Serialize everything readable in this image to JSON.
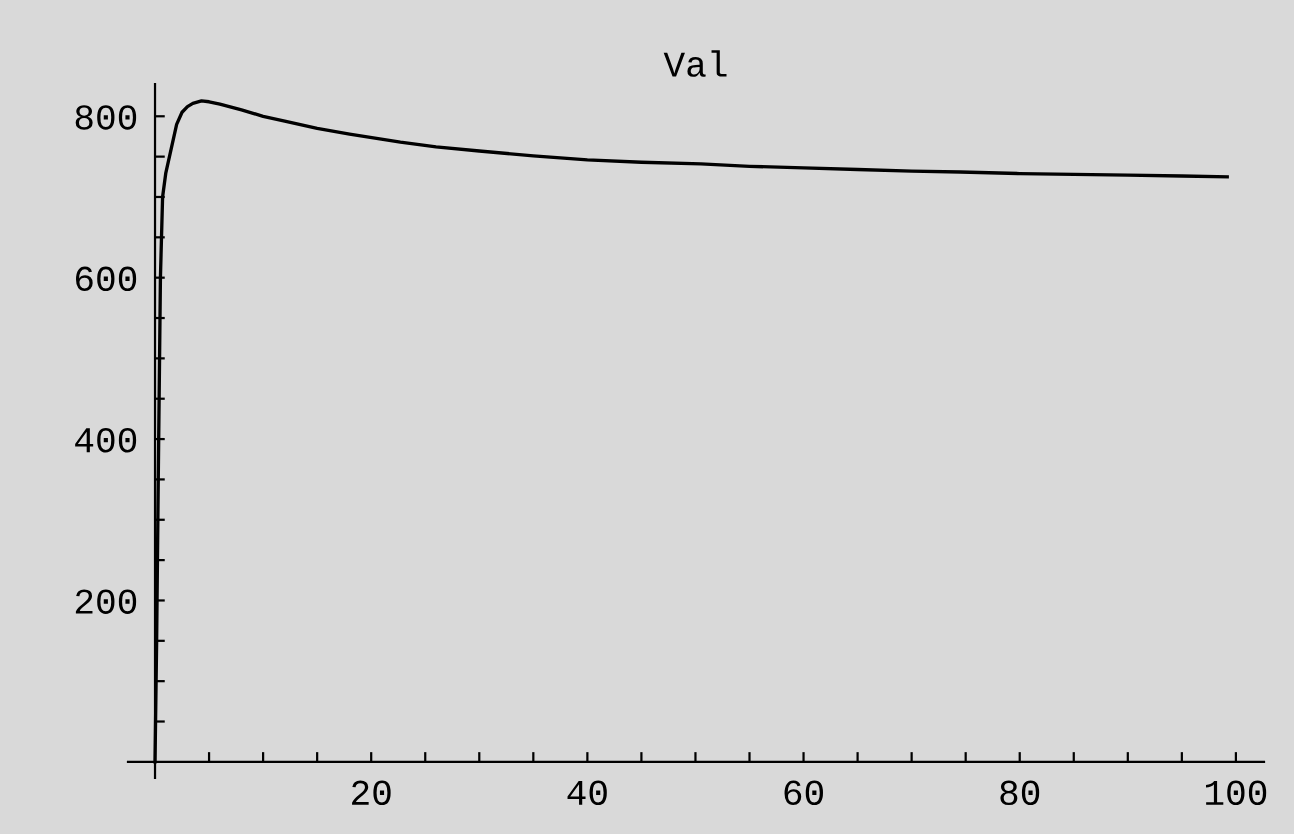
{
  "chart_data": {
    "type": "line",
    "title": "Val",
    "x": [
      0,
      0.15,
      0.3,
      0.5,
      0.7,
      1,
      1.5,
      2,
      2.5,
      3,
      3.5,
      4.3,
      5,
      6,
      8,
      10,
      12,
      15,
      18,
      22.7,
      26,
      30,
      35,
      40,
      45,
      50.5,
      55,
      60,
      65,
      70,
      74.5,
      80,
      85,
      90,
      95,
      99.2
    ],
    "series": [
      {
        "color": "#000000",
        "values": [
          0,
          150,
          350,
          600,
          700,
          730,
          760,
          790,
          805,
          812,
          816,
          819,
          818,
          815,
          808,
          800,
          794,
          785,
          778,
          768,
          762,
          757,
          751,
          746,
          743,
          741,
          738,
          736,
          734,
          732,
          731,
          729,
          728,
          727,
          726,
          725
        ]
      }
    ],
    "xlim": [
      -2.5,
      102.6
    ],
    "ylim": [
      -20,
      840
    ],
    "xticks": [
      {
        "value": 5,
        "label": null
      },
      {
        "value": 10,
        "label": null
      },
      {
        "value": 15,
        "label": null
      },
      20,
      {
        "value": 25,
        "label": null
      },
      {
        "value": 30,
        "label": null
      },
      {
        "value": 35,
        "label": null
      },
      40,
      {
        "value": 45,
        "label": null
      },
      {
        "value": 50,
        "label": null
      },
      {
        "value": 55,
        "label": null
      },
      60,
      {
        "value": 65,
        "label": null
      },
      {
        "value": 70,
        "label": null
      },
      {
        "value": 75,
        "label": null
      },
      80,
      {
        "value": 85,
        "label": null
      },
      {
        "value": 90,
        "label": null
      },
      {
        "value": 95,
        "label": null
      },
      100
    ],
    "yticks": [
      {
        "value": 50,
        "label": null
      },
      {
        "value": 100,
        "label": null
      },
      {
        "value": 150,
        "label": null
      },
      200,
      {
        "value": 250,
        "label": null
      },
      {
        "value": 300,
        "label": null
      },
      {
        "value": 350,
        "label": null
      },
      400,
      {
        "value": 450,
        "label": null
      },
      {
        "value": 500,
        "label": null
      },
      {
        "value": 550,
        "label": null
      },
      600,
      {
        "value": 650,
        "label": null
      },
      {
        "value": 700,
        "label": null
      },
      {
        "value": 750,
        "label": null
      },
      800
    ],
    "grid": false,
    "legend": false,
    "marker": "none",
    "line_style": "solid"
  }
}
